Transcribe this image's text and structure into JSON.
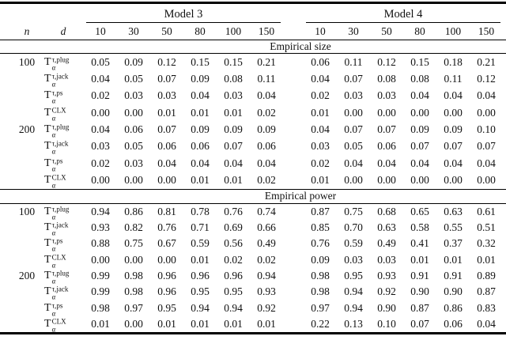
{
  "table": {
    "group_headers": {
      "model3": "Model 3",
      "model4": "Model 4"
    },
    "corner": {
      "n": "n",
      "d": "d"
    },
    "d_values": [
      "10",
      "30",
      "50",
      "80",
      "100",
      "150"
    ],
    "sections": [
      {
        "title": "Empirical size",
        "groups": [
          {
            "n": "100",
            "rows": [
              {
                "base": "T",
                "sup": "τ,plug",
                "sub": "α",
                "m3": [
                  "0.05",
                  "0.09",
                  "0.12",
                  "0.15",
                  "0.15",
                  "0.21"
                ],
                "m4": [
                  "0.06",
                  "0.11",
                  "0.12",
                  "0.15",
                  "0.18",
                  "0.21"
                ]
              },
              {
                "base": "T",
                "sup": "τ,jack",
                "sub": "α",
                "m3": [
                  "0.04",
                  "0.05",
                  "0.07",
                  "0.09",
                  "0.08",
                  "0.11"
                ],
                "m4": [
                  "0.04",
                  "0.07",
                  "0.08",
                  "0.08",
                  "0.11",
                  "0.12"
                ]
              },
              {
                "base": "T",
                "sup": "τ,ps",
                "sub": "α",
                "m3": [
                  "0.02",
                  "0.03",
                  "0.03",
                  "0.04",
                  "0.03",
                  "0.04"
                ],
                "m4": [
                  "0.02",
                  "0.03",
                  "0.03",
                  "0.04",
                  "0.04",
                  "0.04"
                ]
              },
              {
                "base": "T",
                "sup": "CLX",
                "sub": "α",
                "m3": [
                  "0.00",
                  "0.00",
                  "0.01",
                  "0.01",
                  "0.01",
                  "0.02"
                ],
                "m4": [
                  "0.01",
                  "0.00",
                  "0.00",
                  "0.00",
                  "0.00",
                  "0.00"
                ]
              }
            ]
          },
          {
            "n": "200",
            "rows": [
              {
                "base": "T",
                "sup": "τ,plug",
                "sub": "α",
                "m3": [
                  "0.04",
                  "0.06",
                  "0.07",
                  "0.09",
                  "0.09",
                  "0.09"
                ],
                "m4": [
                  "0.04",
                  "0.07",
                  "0.07",
                  "0.09",
                  "0.09",
                  "0.10"
                ]
              },
              {
                "base": "T",
                "sup": "τ,jack",
                "sub": "α",
                "m3": [
                  "0.03",
                  "0.05",
                  "0.06",
                  "0.06",
                  "0.07",
                  "0.06"
                ],
                "m4": [
                  "0.03",
                  "0.05",
                  "0.06",
                  "0.07",
                  "0.07",
                  "0.07"
                ]
              },
              {
                "base": "T",
                "sup": "τ,ps",
                "sub": "α",
                "m3": [
                  "0.02",
                  "0.03",
                  "0.04",
                  "0.04",
                  "0.04",
                  "0.04"
                ],
                "m4": [
                  "0.02",
                  "0.04",
                  "0.04",
                  "0.04",
                  "0.04",
                  "0.04"
                ]
              },
              {
                "base": "T",
                "sup": "CLX",
                "sub": "α",
                "m3": [
                  "0.00",
                  "0.00",
                  "0.00",
                  "0.01",
                  "0.01",
                  "0.02"
                ],
                "m4": [
                  "0.01",
                  "0.00",
                  "0.00",
                  "0.00",
                  "0.00",
                  "0.00"
                ]
              }
            ]
          }
        ]
      },
      {
        "title": "Empirical power",
        "groups": [
          {
            "n": "100",
            "rows": [
              {
                "base": "T",
                "sup": "τ,plug",
                "sub": "α",
                "m3": [
                  "0.94",
                  "0.86",
                  "0.81",
                  "0.78",
                  "0.76",
                  "0.74"
                ],
                "m4": [
                  "0.87",
                  "0.75",
                  "0.68",
                  "0.65",
                  "0.63",
                  "0.61"
                ]
              },
              {
                "base": "T",
                "sup": "τ,jack",
                "sub": "α",
                "m3": [
                  "0.93",
                  "0.82",
                  "0.76",
                  "0.71",
                  "0.69",
                  "0.66"
                ],
                "m4": [
                  "0.85",
                  "0.70",
                  "0.63",
                  "0.58",
                  "0.55",
                  "0.51"
                ]
              },
              {
                "base": "T",
                "sup": "τ,ps",
                "sub": "α",
                "m3": [
                  "0.88",
                  "0.75",
                  "0.67",
                  "0.59",
                  "0.56",
                  "0.49"
                ],
                "m4": [
                  "0.76",
                  "0.59",
                  "0.49",
                  "0.41",
                  "0.37",
                  "0.32"
                ]
              },
              {
                "base": "T",
                "sup": "CLX",
                "sub": "α",
                "m3": [
                  "0.00",
                  "0.00",
                  "0.00",
                  "0.01",
                  "0.02",
                  "0.02"
                ],
                "m4": [
                  "0.09",
                  "0.03",
                  "0.03",
                  "0.01",
                  "0.01",
                  "0.01"
                ]
              }
            ]
          },
          {
            "n": "200",
            "rows": [
              {
                "base": "T",
                "sup": "τ,plug",
                "sub": "α",
                "m3": [
                  "0.99",
                  "0.98",
                  "0.96",
                  "0.96",
                  "0.96",
                  "0.94"
                ],
                "m4": [
                  "0.98",
                  "0.95",
                  "0.93",
                  "0.91",
                  "0.91",
                  "0.89"
                ]
              },
              {
                "base": "T",
                "sup": "τ,jack",
                "sub": "α",
                "m3": [
                  "0.99",
                  "0.98",
                  "0.96",
                  "0.95",
                  "0.95",
                  "0.93"
                ],
                "m4": [
                  "0.98",
                  "0.94",
                  "0.92",
                  "0.90",
                  "0.90",
                  "0.87"
                ]
              },
              {
                "base": "T",
                "sup": "τ,ps",
                "sub": "α",
                "m3": [
                  "0.98",
                  "0.97",
                  "0.95",
                  "0.94",
                  "0.94",
                  "0.92"
                ],
                "m4": [
                  "0.97",
                  "0.94",
                  "0.90",
                  "0.87",
                  "0.86",
                  "0.83"
                ]
              },
              {
                "base": "T",
                "sup": "CLX",
                "sub": "α",
                "m3": [
                  "0.01",
                  "0.00",
                  "0.01",
                  "0.01",
                  "0.01",
                  "0.01"
                ],
                "m4": [
                  "0.22",
                  "0.13",
                  "0.10",
                  "0.07",
                  "0.06",
                  "0.04"
                ]
              }
            ]
          }
        ]
      }
    ]
  }
}
